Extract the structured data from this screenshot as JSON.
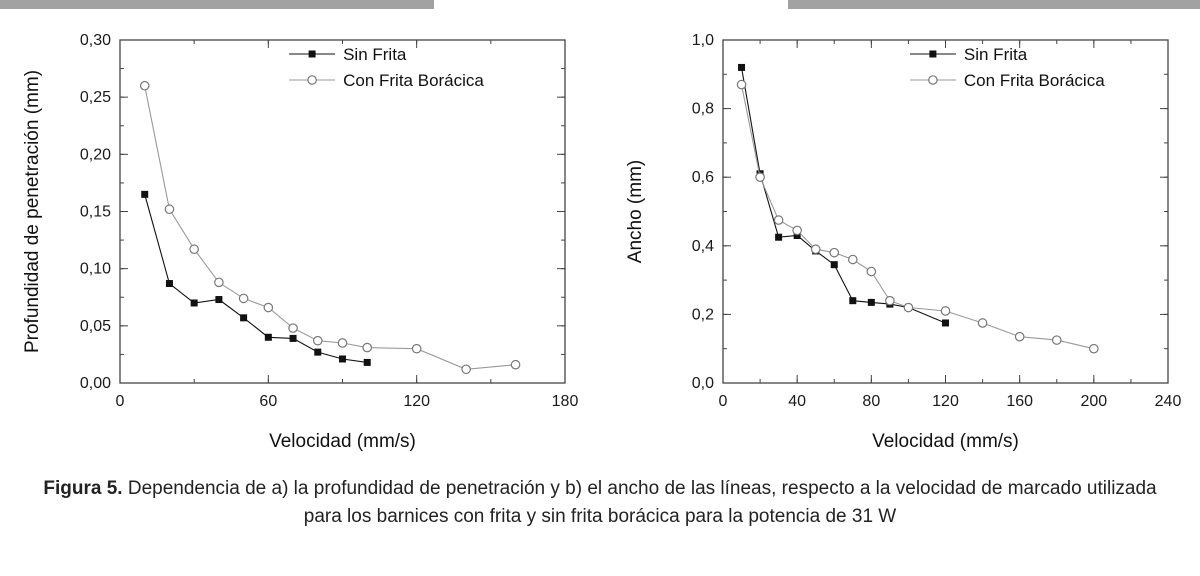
{
  "figure": {
    "caption_label": "Figura 5.",
    "caption_text": " Dependencia de a) la profundidad de penetración y b) el ancho de las líneas, respecto a la velocidad de marcado utilizada para los barnices con frita y sin frita borácica para la potencia de 31 W"
  },
  "colors": {
    "series_sin_frita": "#111111",
    "series_con_frita": "#999999",
    "axis_frame": "#444444",
    "page_edge": "#a2a2a2"
  },
  "chart_data": [
    {
      "type": "line",
      "panel": "a",
      "title": "",
      "xlabel": "Velocidad (mm/s)",
      "ylabel": "Profundidad de penetración (mm)",
      "xlim": [
        0,
        180
      ],
      "ylim": [
        0,
        0.3
      ],
      "xticks": [
        0,
        60,
        120,
        180
      ],
      "xtick_labels": [
        "0",
        "60",
        "120",
        "180"
      ],
      "xminor": 30,
      "yticks": [
        0,
        0.05,
        0.1,
        0.15,
        0.2,
        0.25,
        0.3
      ],
      "ytick_labels": [
        "0,00",
        "0,05",
        "0,10",
        "0,15",
        "0,20",
        "0,25",
        "0,30"
      ],
      "yminor": 0.025,
      "grid": false,
      "legend_position": "top-center-inside",
      "legend_x": 0.38,
      "legend_y": 14,
      "series": [
        {
          "name": "Sin Frita",
          "marker": "filled-square",
          "line_color": "#111111",
          "x": [
            10,
            20,
            30,
            40,
            50,
            60,
            70,
            80,
            90,
            100
          ],
          "y": [
            0.165,
            0.087,
            0.07,
            0.073,
            0.057,
            0.04,
            0.039,
            0.027,
            0.021,
            0.018
          ]
        },
        {
          "name": "Con Frita Borácica",
          "marker": "open-circle",
          "line_color": "#999999",
          "x": [
            10,
            20,
            30,
            40,
            50,
            60,
            70,
            80,
            90,
            100,
            120,
            140,
            160
          ],
          "y": [
            0.26,
            0.152,
            0.117,
            0.088,
            0.074,
            0.066,
            0.048,
            0.037,
            0.035,
            0.031,
            0.03,
            0.012,
            0.016
          ]
        }
      ]
    },
    {
      "type": "line",
      "panel": "b",
      "title": "",
      "xlabel": "Velocidad (mm/s)",
      "ylabel": "Ancho (mm)",
      "xlim": [
        0,
        240
      ],
      "ylim": [
        0,
        1.0
      ],
      "xticks": [
        0,
        40,
        80,
        120,
        160,
        200,
        240
      ],
      "xtick_labels": [
        "0",
        "40",
        "80",
        "120",
        "160",
        "200",
        "240"
      ],
      "xminor": 20,
      "yticks": [
        0,
        0.2,
        0.4,
        0.6,
        0.8,
        1.0
      ],
      "ytick_labels": [
        "0,0",
        "0,2",
        "0,4",
        "0,6",
        "0,8",
        "1,0"
      ],
      "yminor": 0.1,
      "grid": false,
      "legend_position": "top-center-inside",
      "legend_x": 0.42,
      "legend_y": 14,
      "series": [
        {
          "name": "Sin Frita",
          "marker": "filled-square",
          "line_color": "#111111",
          "x": [
            10,
            20,
            30,
            40,
            50,
            60,
            70,
            80,
            90,
            100,
            120
          ],
          "y": [
            0.92,
            0.61,
            0.425,
            0.43,
            0.385,
            0.345,
            0.24,
            0.235,
            0.23,
            0.22,
            0.175
          ]
        },
        {
          "name": "Con Frita Borácica",
          "marker": "open-circle",
          "line_color": "#999999",
          "x": [
            10,
            20,
            30,
            40,
            50,
            60,
            70,
            80,
            90,
            100,
            120,
            140,
            160,
            180,
            200
          ],
          "y": [
            0.87,
            0.6,
            0.475,
            0.445,
            0.39,
            0.38,
            0.36,
            0.325,
            0.24,
            0.22,
            0.21,
            0.175,
            0.135,
            0.125,
            0.1
          ]
        }
      ]
    }
  ]
}
